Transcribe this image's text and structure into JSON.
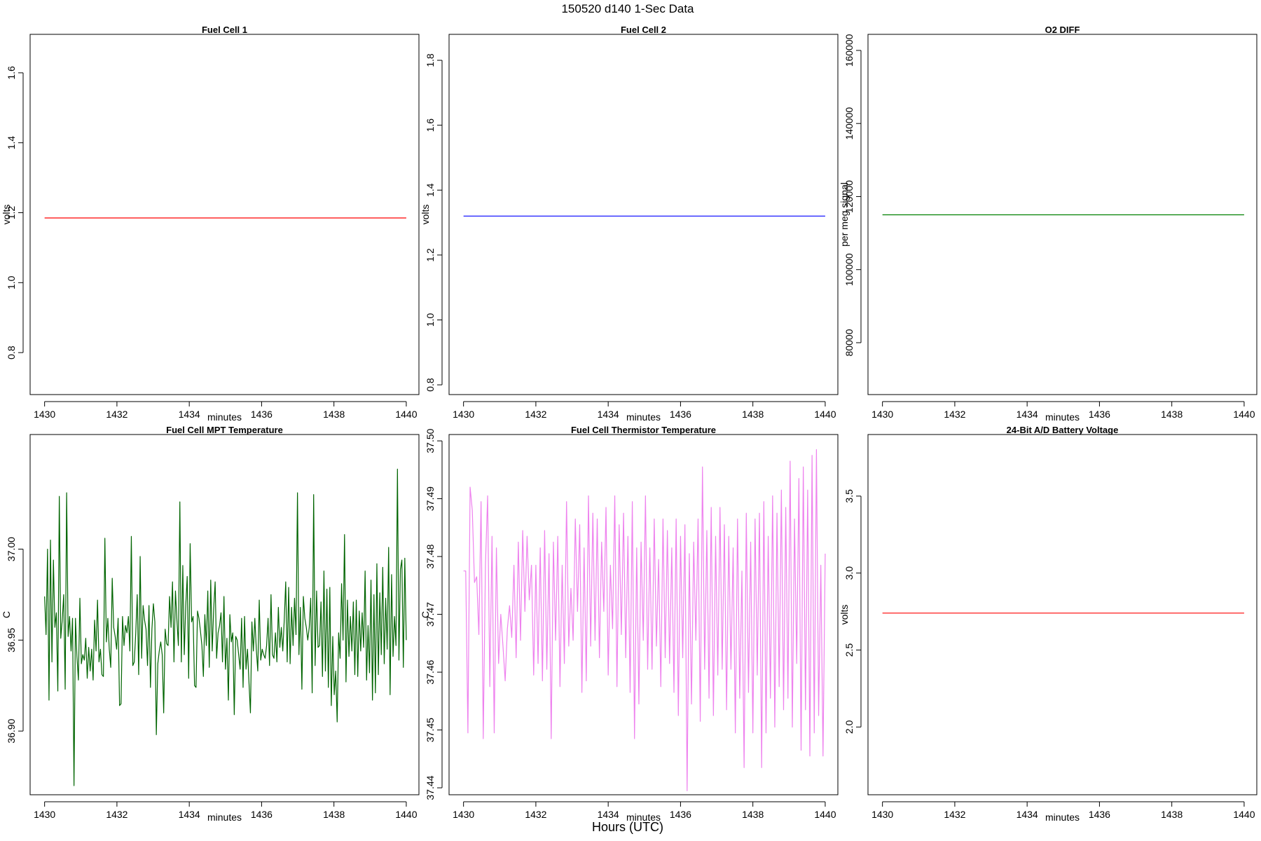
{
  "figure": {
    "title": "150520   d140   1-Sec Data",
    "outer_xlabel": "Hours (UTC)"
  },
  "chart_data": [
    {
      "type": "line",
      "title": "Fuel Cell 1",
      "xlabel": "minutes",
      "ylabel": "volts",
      "xlim": [
        1429.6,
        1440.35
      ],
      "ylim": [
        0.68,
        1.71
      ],
      "xticks": [
        1430,
        1432,
        1434,
        1436,
        1438,
        1440
      ],
      "yticks": [
        0.8,
        1.0,
        1.2,
        1.4,
        1.6
      ],
      "ytick_labels": [
        "0.8",
        "1.0",
        "1.2",
        "1.4",
        "1.6"
      ],
      "grid": false,
      "series": [
        {
          "color": "#ff0000",
          "x": [
            1430,
            1440
          ],
          "values": [
            1.185,
            1.185
          ]
        }
      ]
    },
    {
      "type": "line",
      "title": "Fuel Cell 2",
      "xlabel": "minutes",
      "ylabel": "volts",
      "xlim": [
        1429.6,
        1440.35
      ],
      "ylim": [
        0.77,
        1.88
      ],
      "xticks": [
        1430,
        1432,
        1434,
        1436,
        1438,
        1440
      ],
      "yticks": [
        0.8,
        1.0,
        1.2,
        1.4,
        1.6,
        1.8
      ],
      "ytick_labels": [
        "0.8",
        "1.0",
        "1.2",
        "1.4",
        "1.6",
        "1.8"
      ],
      "grid": false,
      "series": [
        {
          "color": "#0000ff",
          "x": [
            1430,
            1440
          ],
          "values": [
            1.32,
            1.32
          ]
        }
      ]
    },
    {
      "type": "line",
      "title": "O2 DIFF",
      "xlabel": "minutes",
      "ylabel": "per meg signal",
      "xlim": [
        1429.6,
        1440.35
      ],
      "ylim": [
        65800,
        164400
      ],
      "xticks": [
        1430,
        1432,
        1434,
        1436,
        1438,
        1440
      ],
      "yticks": [
        80000,
        100000,
        120000,
        140000,
        160000
      ],
      "ytick_labels": [
        "80000",
        "100000",
        "120000",
        "140000",
        "160000"
      ],
      "grid": false,
      "series": [
        {
          "color": "#008000",
          "x": [
            1430,
            1440
          ],
          "values": [
            115000,
            115000
          ]
        }
      ]
    },
    {
      "type": "line",
      "title": "Fuel Cell MPT Temperature",
      "xlabel": "minutes",
      "ylabel": "C",
      "xlim": [
        1429.6,
        1440.35
      ],
      "ylim": [
        36.865,
        37.063
      ],
      "xticks": [
        1430,
        1432,
        1434,
        1436,
        1438,
        1440
      ],
      "yticks": [
        36.9,
        36.95,
        37.0
      ],
      "ytick_labels": [
        "36.90",
        "36.95",
        "37.00"
      ],
      "grid": false,
      "series": [
        {
          "color": "#006400",
          "x_start": 1430,
          "x_end": 1440,
          "values": [
            36.974,
            36.953,
            37.0,
            36.917,
            37.005,
            36.938,
            36.994,
            36.957,
            36.965,
            36.922,
            37.029,
            36.951,
            36.961,
            36.975,
            36.923,
            37.031,
            36.952,
            36.963,
            36.944,
            36.962,
            36.87,
            36.962,
            36.941,
            36.928,
            36.973,
            36.937,
            36.942,
            36.939,
            36.951,
            36.929,
            36.946,
            36.933,
            36.945,
            36.928,
            36.961,
            36.944,
            36.972,
            36.938,
            36.945,
            36.931,
            36.93,
            37.006,
            36.949,
            36.962,
            36.945,
            36.935,
            36.984,
            36.957,
            36.952,
            36.945,
            36.962,
            36.914,
            36.915,
            36.963,
            36.947,
            36.958,
            36.954,
            36.963,
            36.944,
            37.007,
            36.936,
            36.938,
            36.954,
            36.975,
            36.931,
            36.996,
            36.94,
            36.969,
            36.961,
            36.956,
            36.936,
            36.969,
            36.924,
            36.956,
            36.97,
            36.96,
            36.898,
            36.937,
            36.944,
            36.949,
            36.942,
            36.91,
            36.956,
            36.948,
            36.947,
            36.974,
            36.957,
            36.982,
            36.938,
            36.977,
            36.961,
            36.947,
            37.026,
            36.938,
            36.991,
            36.942,
            36.969,
            36.985,
            36.929,
            37.003,
            36.96,
            36.963,
            36.925,
            36.924,
            36.966,
            36.962,
            36.955,
            36.947,
            36.93,
            36.964,
            36.947,
            36.977,
            36.935,
            36.983,
            36.944,
            36.967,
            36.982,
            36.94,
            36.954,
            36.958,
            36.965,
            36.938,
            36.974,
            36.934,
            36.951,
            36.917,
            36.964,
            36.949,
            36.954,
            36.909,
            36.952,
            36.95,
            36.942,
            36.934,
            36.962,
            36.924,
            36.963,
            36.934,
            36.945,
            36.927,
            36.91,
            36.96,
            36.944,
            36.962,
            36.945,
            36.933,
            36.972,
            36.939,
            36.945,
            36.942,
            36.94,
            36.947,
            36.962,
            36.936,
            36.975,
            36.942,
            36.94,
            36.954,
            36.938,
            36.968,
            36.946,
            36.957,
            36.944,
            36.961,
            36.982,
            36.938,
            36.979,
            36.937,
            36.968,
            36.947,
            36.973,
            36.953,
            37.031,
            36.942,
            36.968,
            36.923,
            36.974,
            36.962,
            36.957,
            36.95,
            36.957,
            36.973,
            36.921,
            37.03,
            36.936,
            36.977,
            36.946,
            36.947,
            36.971,
            36.93,
            36.988,
            36.933,
            36.978,
            36.924,
            36.979,
            36.914,
            36.952,
            36.92,
            36.933,
            36.905,
            36.954,
            36.94,
            36.981,
            36.95,
            37.008,
            36.927,
            36.972,
            36.941,
            36.963,
            36.944,
            36.971,
            36.931,
            36.972,
            36.93,
            36.966,
            36.944,
            36.965,
            36.946,
            36.988,
            36.928,
            36.958,
            36.932,
            36.983,
            36.917,
            36.975,
            36.921,
            36.992,
            36.931,
            36.976,
            36.942,
            36.99,
            36.937,
            36.973,
            36.945,
            37.001,
            36.92,
            36.986,
            36.941,
            36.963,
            36.947,
            37.044,
            36.939,
            36.989,
            36.994,
            36.935,
            36.995,
            36.95
          ]
        }
      ]
    },
    {
      "type": "line",
      "title": "Fuel Cell Thermistor Temperature",
      "xlabel": "minutes",
      "ylabel": "C",
      "xlim": [
        1429.6,
        1440.35
      ],
      "ylim": [
        37.4388,
        37.5011
      ],
      "xticks": [
        1430,
        1432,
        1434,
        1436,
        1438,
        1440
      ],
      "yticks": [
        37.44,
        37.45,
        37.46,
        37.47,
        37.48,
        37.49,
        37.5
      ],
      "ytick_labels": [
        "37.44",
        "37.45",
        "37.46",
        "37.47",
        "37.48",
        "37.49",
        "37.50"
      ],
      "grid": false,
      "series": [
        {
          "color": "#ee82ee",
          "x_start": 1430,
          "x_end": 1440,
          "values": [
            37.4775,
            37.4775,
            37.4495,
            37.492,
            37.488,
            37.4755,
            37.4765,
            37.4665,
            37.4895,
            37.4485,
            37.4785,
            37.4905,
            37.4575,
            37.4835,
            37.4495,
            37.4815,
            37.4615,
            37.47,
            37.4645,
            37.4585,
            37.4675,
            37.4715,
            37.466,
            37.4785,
            37.4625,
            37.4825,
            37.4655,
            37.4845,
            37.4705,
            37.4835,
            37.4725,
            37.4785,
            37.4595,
            37.4785,
            37.4615,
            37.4815,
            37.4585,
            37.4845,
            37.4605,
            37.4805,
            37.4485,
            37.4825,
            37.4655,
            37.4835,
            37.4575,
            37.4785,
            37.4615,
            37.4895,
            37.4645,
            37.4745,
            37.4655,
            37.4865,
            37.4705,
            37.4855,
            37.4565,
            37.4815,
            37.4585,
            37.4905,
            37.4645,
            37.4875,
            37.4655,
            37.4865,
            37.4625,
            37.4825,
            37.4705,
            37.4885,
            37.4595,
            37.4785,
            37.4675,
            37.4905,
            37.4575,
            37.4855,
            37.4665,
            37.4875,
            37.4625,
            37.4835,
            37.4565,
            37.4895,
            37.4485,
            37.4815,
            37.4545,
            37.4825,
            37.4655,
            37.4905,
            37.4605,
            37.4815,
            37.4605,
            37.4865,
            37.4645,
            37.4795,
            37.4575,
            37.4865,
            37.4625,
            37.4845,
            37.4615,
            37.4815,
            37.4565,
            37.4865,
            37.4525,
            37.4835,
            37.4625,
            37.4855,
            37.4395,
            37.4805,
            37.4545,
            37.4825,
            37.4655,
            37.4865,
            37.4515,
            37.4955,
            37.4605,
            37.4845,
            37.4555,
            37.4885,
            37.4525,
            37.4835,
            37.4595,
            37.4885,
            37.4605,
            37.4855,
            37.4535,
            37.4835,
            37.4605,
            37.4815,
            37.4495,
            37.4865,
            37.4555,
            37.4775,
            37.4435,
            37.4875,
            37.4565,
            37.4825,
            37.4495,
            37.4865,
            37.4595,
            37.4875,
            37.4435,
            37.4895,
            37.4495,
            37.4835,
            37.4555,
            37.4905,
            37.4505,
            37.4875,
            37.4575,
            37.4915,
            37.4535,
            37.4885,
            37.4555,
            37.4965,
            37.4505,
            37.4865,
            37.4615,
            37.4935,
            37.4465,
            37.4955,
            37.4535,
            37.4915,
            37.4455,
            37.4975,
            37.4495,
            37.4985,
            37.4525,
            37.4785,
            37.4455,
            37.4805
          ]
        }
      ]
    },
    {
      "type": "line",
      "title": "24-Bit A/D Battery Voltage",
      "xlabel": "minutes",
      "ylabel": "volts",
      "xlim": [
        1429.6,
        1440.35
      ],
      "ylim": [
        1.56,
        3.9
      ],
      "xticks": [
        1430,
        1432,
        1434,
        1436,
        1438,
        1440
      ],
      "yticks": [
        2.0,
        2.5,
        3.0,
        3.5
      ],
      "ytick_labels": [
        "2.0",
        "2.5",
        "3.0",
        "3.5"
      ],
      "grid": false,
      "series": [
        {
          "color": "#ff0000",
          "x": [
            1430,
            1440
          ],
          "values": [
            2.74,
            2.74
          ]
        }
      ]
    }
  ]
}
